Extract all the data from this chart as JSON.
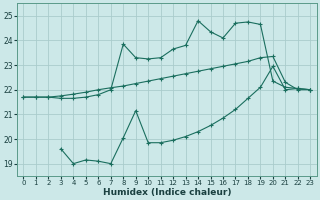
{
  "background_color": "#cce8e8",
  "grid_color": "#aacccc",
  "line_color": "#1a6e5e",
  "xlabel": "Humidex (Indice chaleur)",
  "xlim": [
    -0.5,
    23.5
  ],
  "ylim": [
    18.5,
    25.5
  ],
  "xticks": [
    0,
    1,
    2,
    3,
    4,
    5,
    6,
    7,
    8,
    9,
    10,
    11,
    12,
    13,
    14,
    15,
    16,
    17,
    18,
    19,
    20,
    21,
    22,
    23
  ],
  "yticks": [
    19,
    20,
    21,
    22,
    23,
    24,
    25
  ],
  "curve_upper_x": [
    0,
    1,
    2,
    3,
    4,
    5,
    6,
    7,
    8,
    9,
    10,
    11,
    12,
    13,
    14,
    15,
    16,
    17,
    18,
    19,
    20,
    21,
    22,
    23
  ],
  "curve_upper_y": [
    21.7,
    21.7,
    21.7,
    21.65,
    21.65,
    21.7,
    21.8,
    22.0,
    23.85,
    23.3,
    23.25,
    23.3,
    23.65,
    23.8,
    24.8,
    24.35,
    24.1,
    24.7,
    24.75,
    24.65,
    22.35,
    22.1,
    22.05,
    22.0
  ],
  "curve_middle_x": [
    0,
    1,
    2,
    3,
    4,
    5,
    6,
    7,
    8,
    9,
    10,
    11,
    12,
    13,
    14,
    15,
    16,
    17,
    18,
    19,
    20,
    21,
    22,
    23
  ],
  "curve_middle_y": [
    21.7,
    21.7,
    21.7,
    21.75,
    21.82,
    21.9,
    22.0,
    22.08,
    22.15,
    22.25,
    22.35,
    22.45,
    22.55,
    22.65,
    22.75,
    22.85,
    22.95,
    23.05,
    23.15,
    23.3,
    23.35,
    22.3,
    22.0,
    22.0
  ],
  "curve_lower_x": [
    3,
    4,
    5,
    6,
    7,
    8,
    9,
    10,
    11,
    12,
    13,
    14,
    15,
    16,
    17,
    18,
    19,
    20,
    21,
    22,
    23
  ],
  "curve_lower_y": [
    19.6,
    19.0,
    19.15,
    19.1,
    19.0,
    20.05,
    21.15,
    19.85,
    19.85,
    19.95,
    20.1,
    20.3,
    20.55,
    20.85,
    21.2,
    21.65,
    22.1,
    22.95,
    22.0,
    22.05,
    22.0
  ]
}
